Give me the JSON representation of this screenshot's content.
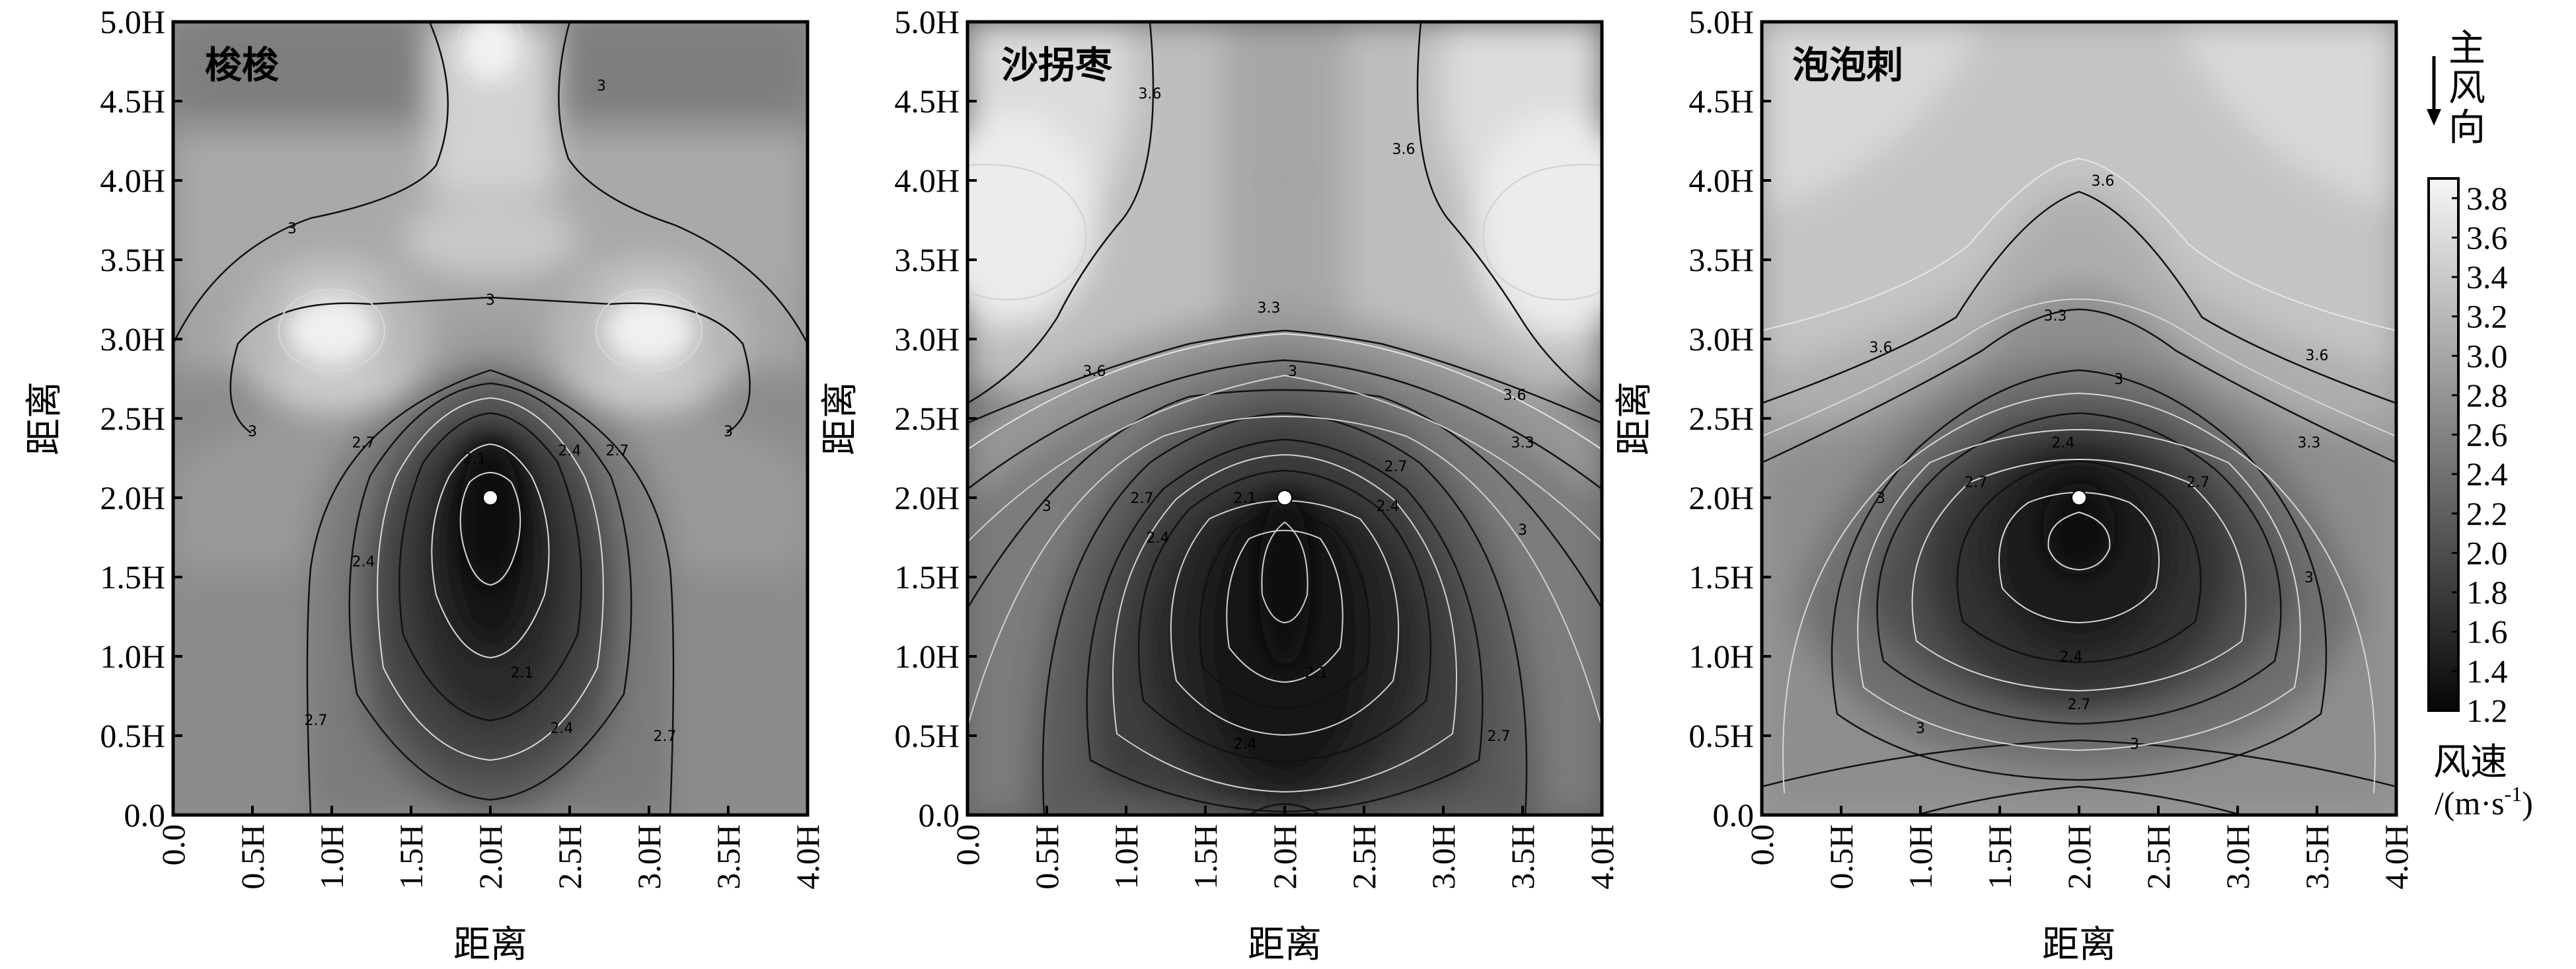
{
  "chart_data": [
    {
      "type": "heatmap",
      "subtype": "filled-contour",
      "title": "梭梭",
      "xlabel": "距离",
      "ylabel": "距离",
      "xlim": [
        0,
        4
      ],
      "ylim": [
        0,
        5
      ],
      "xticks": [
        "0.0",
        "0.5H",
        "1.0H",
        "1.5H",
        "2.0H",
        "2.5H",
        "3.0H",
        "3.5H",
        "4.0H"
      ],
      "yticks": [
        "0.0",
        "0.5H",
        "1.0H",
        "1.5H",
        "2.0H",
        "2.5H",
        "3.0H",
        "3.5H",
        "4.0H",
        "4.5H",
        "5.0H"
      ],
      "plant_position": {
        "x": 2.0,
        "y": 2.0
      },
      "min_speed_zone": {
        "x": 2.0,
        "y": 1.6,
        "value": 1.3
      },
      "high_speed_zones": [
        {
          "x": 1.0,
          "y": 3.1,
          "value": 3.8
        },
        {
          "x": 3.0,
          "y": 3.1,
          "value": 3.8
        },
        {
          "x": 2.0,
          "y": 4.9,
          "value": 3.8
        }
      ],
      "contour_labels": [
        {
          "x": 0.75,
          "y": 3.7,
          "text": "3"
        },
        {
          "x": 2.7,
          "y": 4.6,
          "text": "3"
        },
        {
          "x": 2.0,
          "y": 3.25,
          "text": "3"
        },
        {
          "x": 0.5,
          "y": 2.42,
          "text": "3"
        },
        {
          "x": 3.5,
          "y": 2.42,
          "text": "3"
        },
        {
          "x": 1.2,
          "y": 2.35,
          "text": "2.7"
        },
        {
          "x": 2.8,
          "y": 2.3,
          "text": "2.7"
        },
        {
          "x": 0.9,
          "y": 0.6,
          "text": "2.7"
        },
        {
          "x": 3.1,
          "y": 0.5,
          "text": "2.7"
        },
        {
          "x": 1.2,
          "y": 1.6,
          "text": "2.4"
        },
        {
          "x": 2.5,
          "y": 2.3,
          "text": "2.4"
        },
        {
          "x": 2.45,
          "y": 0.55,
          "text": "2.4"
        },
        {
          "x": 1.9,
          "y": 2.25,
          "text": "2.1"
        },
        {
          "x": 2.2,
          "y": 0.9,
          "text": "2.1"
        }
      ]
    },
    {
      "type": "heatmap",
      "subtype": "filled-contour",
      "title": "沙拐枣",
      "xlabel": "距离",
      "ylabel": "距离",
      "xlim": [
        0,
        4
      ],
      "ylim": [
        0,
        5
      ],
      "xticks": [
        "0.0",
        "0.5H",
        "1.0H",
        "1.5H",
        "2.0H",
        "2.5H",
        "3.0H",
        "3.5H",
        "4.0H"
      ],
      "yticks": [
        "0.0",
        "0.5H",
        "1.0H",
        "1.5H",
        "2.0H",
        "2.5H",
        "3.0H",
        "3.5H",
        "4.0H",
        "4.5H",
        "5.0H"
      ],
      "plant_position": {
        "x": 2.0,
        "y": 2.0
      },
      "min_speed_zone": {
        "x": 2.0,
        "y": 1.5,
        "value": 1.3
      },
      "high_speed_zones": [
        {
          "x": 0.2,
          "y": 3.6,
          "value": 3.8
        },
        {
          "x": 3.8,
          "y": 3.6,
          "value": 3.8
        }
      ],
      "contour_labels": [
        {
          "x": 1.15,
          "y": 4.55,
          "text": "3.6"
        },
        {
          "x": 2.75,
          "y": 4.2,
          "text": "3.6"
        },
        {
          "x": 0.8,
          "y": 2.8,
          "text": "3.6"
        },
        {
          "x": 3.45,
          "y": 2.65,
          "text": "3.6"
        },
        {
          "x": 1.9,
          "y": 3.2,
          "text": "3.3"
        },
        {
          "x": 3.5,
          "y": 2.35,
          "text": "3.3"
        },
        {
          "x": 2.05,
          "y": 2.8,
          "text": "3"
        },
        {
          "x": 0.5,
          "y": 1.95,
          "text": "3"
        },
        {
          "x": 3.5,
          "y": 1.8,
          "text": "3"
        },
        {
          "x": 1.1,
          "y": 2.0,
          "text": "2.7"
        },
        {
          "x": 2.7,
          "y": 2.2,
          "text": "2.7"
        },
        {
          "x": 3.35,
          "y": 0.5,
          "text": "2.7"
        },
        {
          "x": 1.2,
          "y": 1.75,
          "text": "2.4"
        },
        {
          "x": 2.65,
          "y": 1.95,
          "text": "2.4"
        },
        {
          "x": 1.75,
          "y": 2.0,
          "text": "2.1"
        },
        {
          "x": 2.2,
          "y": 0.9,
          "text": "2.1"
        },
        {
          "x": 1.75,
          "y": 0.45,
          "text": "2.4"
        }
      ]
    },
    {
      "type": "heatmap",
      "subtype": "filled-contour",
      "title": "泡泡刺",
      "xlabel": "距离",
      "ylabel": "距离",
      "xlim": [
        0,
        4
      ],
      "ylim": [
        0,
        5
      ],
      "xticks": [
        "0.0",
        "0.5H",
        "1.0H",
        "1.5H",
        "2.0H",
        "2.5H",
        "3.0H",
        "3.5H",
        "4.0H"
      ],
      "yticks": [
        "0.0",
        "0.5H",
        "1.0H",
        "1.5H",
        "2.0H",
        "2.5H",
        "3.0H",
        "3.5H",
        "4.0H",
        "4.5H",
        "5.0H"
      ],
      "plant_position": {
        "x": 2.0,
        "y": 2.0
      },
      "min_speed_zone": {
        "x": 2.0,
        "y": 1.85,
        "value": 1.3
      },
      "high_speed_zones": [
        {
          "x": 0.2,
          "y": 4.8,
          "value": 3.8
        },
        {
          "x": 3.8,
          "y": 4.8,
          "value": 3.8
        }
      ],
      "contour_labels": [
        {
          "x": 2.15,
          "y": 4.0,
          "text": "3.6"
        },
        {
          "x": 0.75,
          "y": 2.95,
          "text": "3.6"
        },
        {
          "x": 3.5,
          "y": 2.9,
          "text": "3.6"
        },
        {
          "x": 1.85,
          "y": 3.15,
          "text": "3.3"
        },
        {
          "x": 3.45,
          "y": 2.35,
          "text": "3.3"
        },
        {
          "x": 2.25,
          "y": 2.75,
          "text": "3"
        },
        {
          "x": 0.75,
          "y": 2.0,
          "text": "3"
        },
        {
          "x": 3.45,
          "y": 1.5,
          "text": "3"
        },
        {
          "x": 1.0,
          "y": 0.55,
          "text": "3"
        },
        {
          "x": 2.35,
          "y": 0.45,
          "text": "3"
        },
        {
          "x": 1.35,
          "y": 2.1,
          "text": "2.7"
        },
        {
          "x": 2.75,
          "y": 2.1,
          "text": "2.7"
        },
        {
          "x": 2.0,
          "y": 0.7,
          "text": "2.7"
        },
        {
          "x": 1.9,
          "y": 2.35,
          "text": "2.4"
        },
        {
          "x": 1.95,
          "y": 1.0,
          "text": "2.4"
        }
      ]
    }
  ],
  "colorbar": {
    "label": "风速",
    "unit": "/(m·s",
    "unit_exp": "-1",
    "unit_close": ")",
    "range": [
      1.2,
      3.9
    ],
    "ticks": [
      "3.8",
      "3.6",
      "3.4",
      "3.2",
      "3.0",
      "2.8",
      "2.6",
      "2.4",
      "2.2",
      "2.0",
      "1.8",
      "1.6",
      "1.4",
      "1.2"
    ],
    "tick_values": [
      3.8,
      3.6,
      3.4,
      3.2,
      3.0,
      2.8,
      2.6,
      2.4,
      2.2,
      2.0,
      1.8,
      1.6,
      1.4,
      1.2
    ],
    "colors": {
      "low": "#060606",
      "high": "#f6f6f6"
    }
  },
  "wind_direction": {
    "chars": [
      "主",
      "风",
      "向"
    ],
    "arrow": "down-arrow"
  }
}
